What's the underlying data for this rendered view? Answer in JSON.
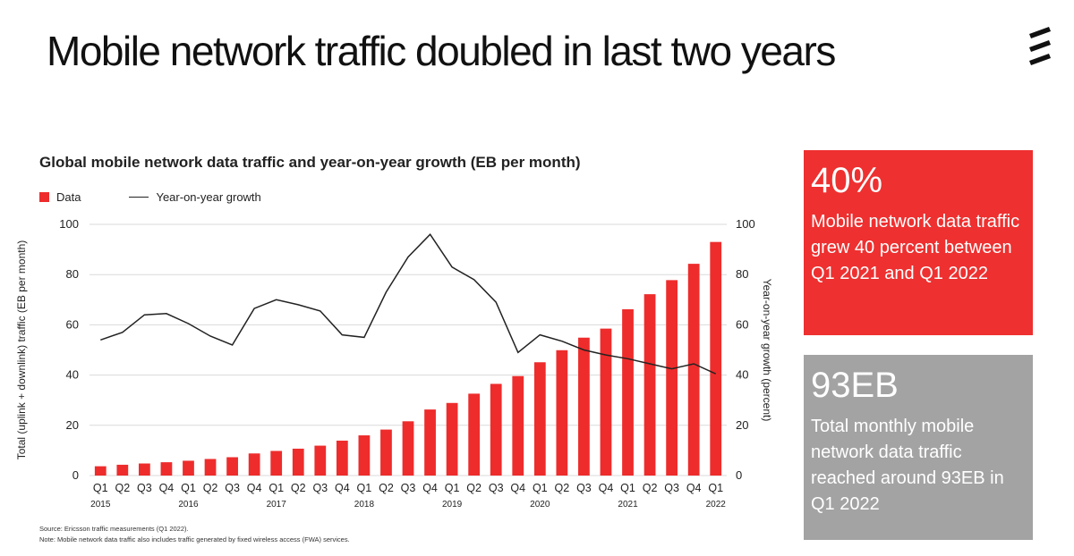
{
  "slide": {
    "title": "Mobile network traffic doubled in last two years"
  },
  "logo": {
    "icon": "ericsson-logo-icon"
  },
  "colors": {
    "accent": "#ee2c2c",
    "card_red": "#ee3030",
    "card_gray": "#a3a3a3",
    "line": "#222222"
  },
  "chart_data": {
    "type": "bar",
    "title": "Global mobile network data traffic and year-on-year growth (EB per month)",
    "ylabel": "Total (uplink + downlink) traffic (EB per month)",
    "y2label": "Year-on-year growth (percent)",
    "ylim": [
      0,
      100
    ],
    "y2lim": [
      0,
      100
    ],
    "yticks": [
      "0",
      "20",
      "40",
      "60",
      "80",
      "100"
    ],
    "categories": [
      "Q1",
      "Q2",
      "Q3",
      "Q4",
      "Q1",
      "Q2",
      "Q3",
      "Q4",
      "Q1",
      "Q2",
      "Q3",
      "Q4",
      "Q1",
      "Q2",
      "Q3",
      "Q4",
      "Q1",
      "Q2",
      "Q3",
      "Q4",
      "Q1",
      "Q2",
      "Q3",
      "Q4",
      "Q1",
      "Q2",
      "Q3",
      "Q4",
      "Q1"
    ],
    "years": [
      {
        "label": "2015",
        "index": 0
      },
      {
        "label": "2016",
        "index": 4
      },
      {
        "label": "2017",
        "index": 8
      },
      {
        "label": "2018",
        "index": 12
      },
      {
        "label": "2019",
        "index": 16
      },
      {
        "label": "2020",
        "index": 20
      },
      {
        "label": "2021",
        "index": 24
      },
      {
        "label": "2022",
        "index": 28
      }
    ],
    "legend": [
      "Data",
      "Year-on-year growth"
    ],
    "series": [
      {
        "name": "Data",
        "type": "bar",
        "values": [
          3.7,
          4.3,
          4.8,
          5.3,
          5.9,
          6.6,
          7.3,
          8.8,
          9.8,
          10.7,
          11.9,
          13.9,
          16,
          18.3,
          21.6,
          26.3,
          28.9,
          32.6,
          36.5,
          39.6,
          45.1,
          49.9,
          54.9,
          58.5,
          66.2,
          72.2,
          77.8,
          84.3,
          93
        ]
      },
      {
        "name": "Year-on-year growth",
        "type": "line",
        "values": [
          54,
          57,
          64,
          64.5,
          60.5,
          55.5,
          52,
          66.5,
          70,
          68,
          65.5,
          56,
          55,
          73,
          87,
          96,
          83,
          78,
          69,
          49,
          56,
          53.5,
          50,
          48,
          46.5,
          44.5,
          42.5,
          44.5,
          40.5
        ]
      }
    ],
    "grid": true
  },
  "notes": {
    "source": "Source: Ericsson traffic measurements (Q1 2022).",
    "note": "Note: Mobile network data traffic also includes traffic generated by fixed wireless access (FWA) services."
  },
  "cards": {
    "growth": {
      "big": "40%",
      "text": "Mobile network data traffic grew 40 percent between Q1 2021 and Q1 2022"
    },
    "total": {
      "big": "93EB",
      "text": "Total monthly mobile network data traffic reached around 93EB in Q1 2022"
    }
  }
}
